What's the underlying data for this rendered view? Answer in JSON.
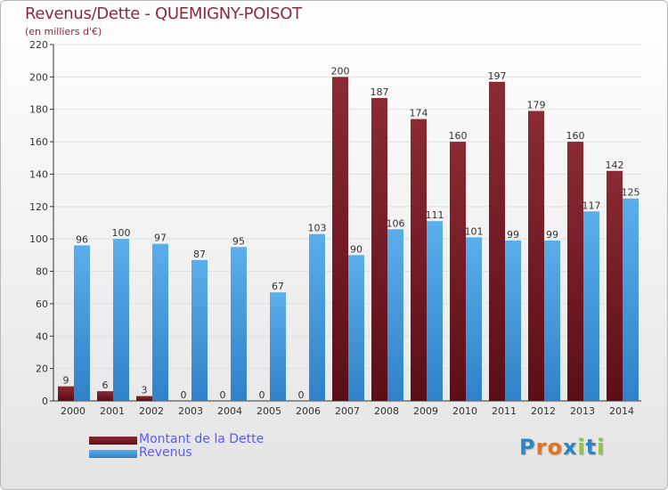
{
  "title": "Revenus/Dette - QUEMIGNY-POISOT",
  "subtitle": "(en milliers d'€)",
  "logo": {
    "text": "Proxiti"
  },
  "colors": {
    "dette": "#7a1c24",
    "revenus": "#3a90d8",
    "axis": "#333333",
    "grid": "#e0e0e0"
  },
  "chart_data": {
    "type": "bar",
    "categories": [
      "2000",
      "2001",
      "2002",
      "2003",
      "2004",
      "2005",
      "2006",
      "2007",
      "2008",
      "2009",
      "2010",
      "2011",
      "2012",
      "2013",
      "2014"
    ],
    "series": [
      {
        "name": "Montant de la Dette",
        "values": [
          9,
          6,
          3,
          0,
          0,
          0,
          0,
          200,
          187,
          174,
          160,
          197,
          179,
          160,
          142
        ]
      },
      {
        "name": "Revenus",
        "values": [
          96,
          100,
          97,
          87,
          95,
          67,
          103,
          90,
          106,
          111,
          101,
          99,
          99,
          117,
          125
        ]
      }
    ],
    "yticks": [
      0,
      20,
      40,
      60,
      80,
      100,
      120,
      140,
      160,
      180,
      200,
      220
    ],
    "ylim": [
      0,
      220
    ],
    "xlabel": "",
    "ylabel": "",
    "legend_position": "bottom-left"
  }
}
